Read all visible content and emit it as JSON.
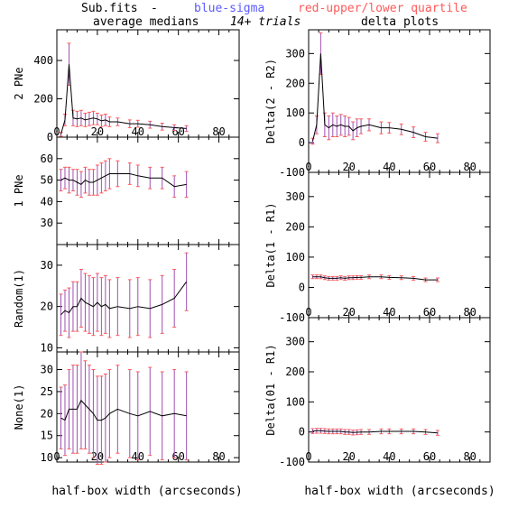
{
  "header": {
    "source": "Sub.fits",
    "dash": "-",
    "blue_label": "blue-sigma",
    "red_label": "red-upper/lower quartile",
    "left_title": "average medians",
    "trials": "14+ trials",
    "right_title": "delta plots"
  },
  "colors": {
    "line": "#000000",
    "sigma": "#5a5aff",
    "quartile": "#ff5a5a",
    "errorbar": "#a050b0"
  },
  "chart_data": [
    {
      "type": "line",
      "panel": "left-1",
      "ylabel": "2 PNe",
      "xlim": [
        0,
        90
      ],
      "ylim": [
        0,
        560
      ],
      "xticks": [
        0,
        20,
        40,
        60,
        80
      ],
      "yticks": [
        0,
        200,
        400
      ],
      "show_xticklabels": true,
      "x": [
        2,
        4,
        6,
        8,
        10,
        12,
        14,
        16,
        18,
        20,
        22,
        24,
        26,
        30,
        36,
        40,
        46,
        52,
        58,
        64
      ],
      "y": [
        15,
        90,
        380,
        100,
        95,
        100,
        90,
        95,
        100,
        95,
        85,
        90,
        80,
        80,
        70,
        70,
        65,
        55,
        50,
        45
      ],
      "err": [
        10,
        30,
        110,
        40,
        40,
        40,
        35,
        35,
        35,
        30,
        30,
        30,
        25,
        20,
        20,
        18,
        18,
        18,
        15,
        15
      ]
    },
    {
      "type": "line",
      "panel": "left-2",
      "ylabel": "1 PNe",
      "xlim": [
        0,
        90
      ],
      "ylim": [
        20,
        70
      ],
      "xticks": [
        0,
        20,
        40,
        60,
        80
      ],
      "yticks": [
        30,
        40,
        50,
        60
      ],
      "show_xticklabels": false,
      "x": [
        2,
        4,
        6,
        8,
        10,
        12,
        14,
        16,
        18,
        20,
        22,
        24,
        26,
        30,
        36,
        40,
        46,
        52,
        58,
        64
      ],
      "y": [
        50,
        51,
        50,
        50,
        49,
        48,
        50,
        49,
        49,
        50,
        51,
        52,
        53,
        53,
        53,
        52,
        51,
        51,
        47,
        48
      ],
      "err": [
        5,
        5,
        6,
        5,
        6,
        6,
        6,
        6,
        6,
        7,
        7,
        7,
        7,
        6,
        5,
        5,
        5,
        5,
        5,
        6
      ]
    },
    {
      "type": "line",
      "panel": "left-3",
      "ylabel": "Random(1)",
      "xlim": [
        0,
        90
      ],
      "ylim": [
        9,
        35
      ],
      "xticks": [
        0,
        20,
        40,
        60,
        80
      ],
      "yticks": [
        10,
        20,
        30
      ],
      "show_xticklabels": false,
      "x": [
        2,
        4,
        6,
        8,
        10,
        12,
        14,
        16,
        18,
        20,
        22,
        24,
        26,
        30,
        36,
        40,
        46,
        52,
        58,
        64
      ],
      "y": [
        18,
        19,
        18.5,
        20,
        20,
        22,
        21,
        20.5,
        20,
        21,
        20,
        20.5,
        19.5,
        20,
        19.5,
        20,
        19.5,
        20.5,
        22,
        26
      ],
      "err": [
        5,
        5,
        6,
        6,
        6,
        7,
        7,
        7,
        7,
        7,
        7,
        7,
        7,
        7,
        7,
        7,
        7,
        7,
        7,
        7
      ]
    },
    {
      "type": "line",
      "panel": "left-4",
      "ylabel": "None(1)",
      "xlim": [
        0,
        90
      ],
      "ylim": [
        9,
        34
      ],
      "xticks": [
        0,
        20,
        40,
        60,
        80
      ],
      "yticks": [
        10,
        15,
        20,
        25,
        30
      ],
      "show_xticklabels": true,
      "x": [
        2,
        4,
        6,
        8,
        10,
        12,
        14,
        16,
        18,
        20,
        22,
        24,
        26,
        30,
        36,
        40,
        46,
        52,
        58,
        64
      ],
      "y": [
        19,
        18.5,
        21,
        21,
        21,
        23,
        22,
        21,
        20,
        18.5,
        18.5,
        19,
        20,
        21,
        20,
        19.5,
        20.5,
        19.5,
        20,
        19.5
      ],
      "err": [
        7,
        8,
        9,
        10,
        10,
        11,
        10,
        10,
        10,
        10,
        10,
        10,
        10,
        10,
        10,
        10,
        10,
        10,
        10,
        10
      ]
    },
    {
      "type": "line",
      "panel": "right-1",
      "ylabel": "Delta(2 - R2)",
      "xlim": [
        0,
        90
      ],
      "ylim": [
        -100,
        380
      ],
      "xticks": [
        0,
        20,
        40,
        60,
        80
      ],
      "yticks": [
        -100,
        0,
        100,
        200,
        300
      ],
      "show_xticklabels": true,
      "x": [
        2,
        4,
        6,
        8,
        10,
        12,
        14,
        16,
        18,
        20,
        22,
        24,
        26,
        30,
        36,
        40,
        46,
        52,
        58,
        64
      ],
      "y": [
        5,
        60,
        300,
        60,
        50,
        60,
        55,
        60,
        55,
        55,
        40,
        50,
        55,
        60,
        50,
        50,
        45,
        35,
        20,
        15
      ],
      "err": [
        10,
        30,
        70,
        40,
        40,
        40,
        35,
        35,
        35,
        30,
        30,
        30,
        25,
        20,
        20,
        18,
        18,
        18,
        15,
        15
      ]
    },
    {
      "type": "line",
      "panel": "right-2",
      "ylabel": "Delta(1 - R1)",
      "xlim": [
        0,
        90
      ],
      "ylim": [
        -100,
        380
      ],
      "xticks": [
        0,
        20,
        40,
        60,
        80
      ],
      "yticks": [
        -100,
        0,
        100,
        200,
        300
      ],
      "show_xticklabels": true,
      "x": [
        2,
        4,
        6,
        8,
        10,
        12,
        14,
        16,
        18,
        20,
        22,
        24,
        26,
        30,
        36,
        40,
        46,
        52,
        58,
        64
      ],
      "y": [
        35,
        35,
        35,
        32,
        30,
        30,
        30,
        32,
        30,
        32,
        32,
        33,
        33,
        35,
        35,
        33,
        32,
        30,
        25,
        25
      ],
      "err": [
        6,
        6,
        6,
        6,
        6,
        6,
        6,
        6,
        6,
        6,
        6,
        6,
        6,
        6,
        6,
        6,
        6,
        6,
        6,
        6
      ]
    },
    {
      "type": "line",
      "panel": "right-3",
      "ylabel": "Delta(01 - R1)",
      "xlim": [
        0,
        90
      ],
      "ylim": [
        -100,
        380
      ],
      "xticks": [
        0,
        20,
        40,
        60,
        80
      ],
      "yticks": [
        -100,
        0,
        100,
        200,
        300
      ],
      "show_xticklabels": true,
      "x": [
        2,
        4,
        6,
        8,
        10,
        12,
        14,
        16,
        18,
        20,
        22,
        24,
        26,
        30,
        36,
        40,
        46,
        52,
        58,
        64
      ],
      "y": [
        3,
        4,
        4,
        3,
        2,
        2,
        2,
        2,
        0,
        0,
        -2,
        -1,
        0,
        0,
        2,
        2,
        2,
        2,
        0,
        -3
      ],
      "err": [
        8,
        8,
        8,
        8,
        8,
        8,
        8,
        8,
        8,
        8,
        8,
        8,
        8,
        8,
        8,
        8,
        8,
        8,
        8,
        8
      ]
    }
  ],
  "xlabel": "half-box width (arcseconds)"
}
